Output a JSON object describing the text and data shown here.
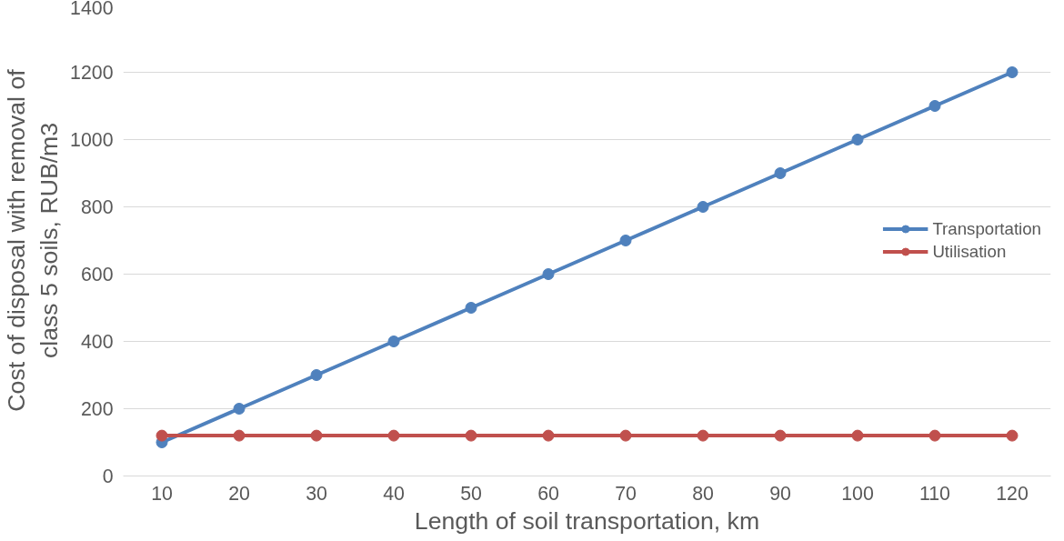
{
  "chart_data": {
    "type": "line",
    "xlabel": "Length of soil transportation, km",
    "ylabel": "Cost of disposal with removal of\nclass 5 soils, RUB/m3",
    "categories": [
      "10",
      "20",
      "30",
      "40",
      "50",
      "60",
      "70",
      "80",
      "90",
      "100",
      "110",
      "120"
    ],
    "series": [
      {
        "name": "Transportation",
        "color": "#4f81bd",
        "values": [
          100,
          200,
          300,
          400,
          500,
          600,
          700,
          800,
          900,
          1000,
          1100,
          1200
        ]
      },
      {
        "name": "Utilisation",
        "color": "#c0504d",
        "values": [
          120,
          120,
          120,
          120,
          120,
          120,
          120,
          120,
          120,
          120,
          120,
          120
        ]
      }
    ],
    "ylim": [
      0,
      1400
    ],
    "yticks": [
      0,
      200,
      400,
      600,
      800,
      1000,
      1200,
      1400
    ],
    "grid": "y",
    "legend": "right",
    "marker": "circle",
    "line_style": "solid"
  }
}
